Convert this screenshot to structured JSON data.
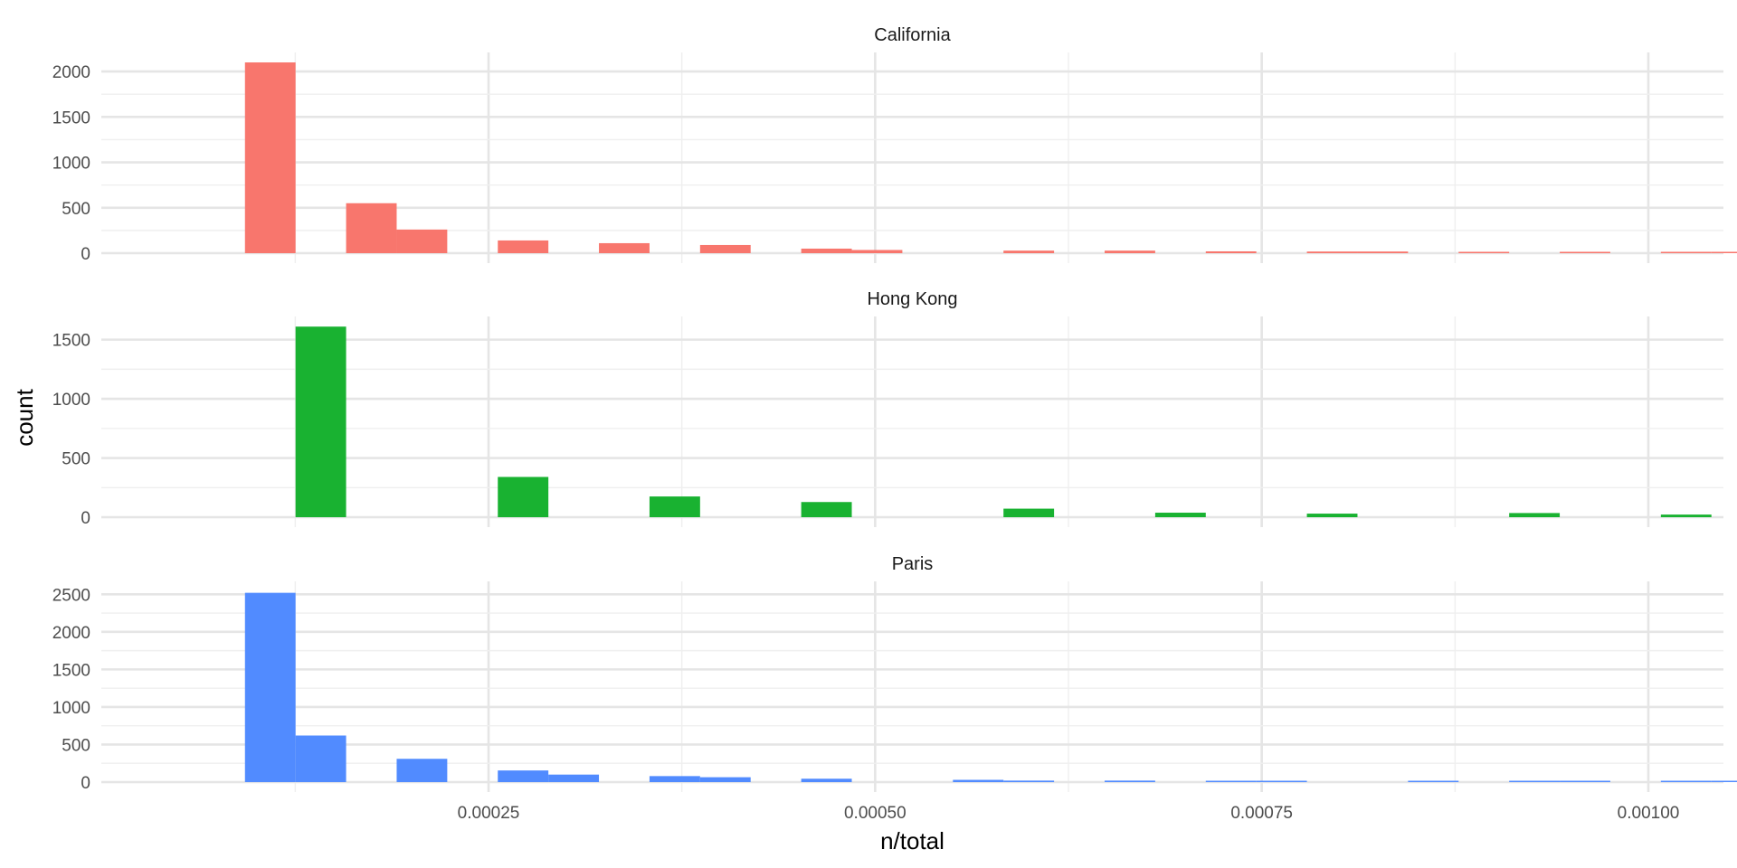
{
  "chart_data": {
    "type": "bar",
    "subtype": "faceted-histogram",
    "xlabel": "n/total",
    "ylabel": "count",
    "xlim": [
      0.0,
      0.00105
    ],
    "x_major_ticks": [
      0.00025,
      0.0005,
      0.00075,
      0.001
    ],
    "x_tick_labels": [
      "0.00025",
      "0.00050",
      "0.00075",
      "0.00100"
    ],
    "x_minor_ticks": [
      0.000125,
      0.000375,
      0.000625,
      0.000875
    ],
    "bin_width": 3.27e-05,
    "bin_origin": 9.25e-05,
    "grid": true,
    "legend": "none",
    "facets": [
      {
        "name": "California",
        "color": "#F8766D",
        "ylim": [
          0,
          2150
        ],
        "y_major_ticks": [
          0,
          500,
          1000,
          1500,
          2000
        ],
        "y_tick_labels": [
          "0",
          "500",
          "1000",
          "1500",
          "2000"
        ],
        "y_minor_ticks": [
          250,
          750,
          1250,
          1750
        ],
        "bins": [
          {
            "bin": 0,
            "count": 2100
          },
          {
            "bin": 2,
            "count": 550
          },
          {
            "bin": 3,
            "count": 260
          },
          {
            "bin": 5,
            "count": 140
          },
          {
            "bin": 7,
            "count": 110
          },
          {
            "bin": 9,
            "count": 90
          },
          {
            "bin": 11,
            "count": 50
          },
          {
            "bin": 12,
            "count": 35
          },
          {
            "bin": 15,
            "count": 28
          },
          {
            "bin": 17,
            "count": 28
          },
          {
            "bin": 19,
            "count": 20
          },
          {
            "bin": 21,
            "count": 18
          },
          {
            "bin": 22,
            "count": 18
          },
          {
            "bin": 24,
            "count": 12
          },
          {
            "bin": 26,
            "count": 12
          },
          {
            "bin": 28,
            "count": 10
          },
          {
            "bin": 29,
            "count": 10
          }
        ]
      },
      {
        "name": "Hong Kong",
        "color": "#19B231",
        "ylim": [
          0,
          1650
        ],
        "y_major_ticks": [
          0,
          500,
          1000,
          1500
        ],
        "y_tick_labels": [
          "0",
          "500",
          "1000",
          "1500"
        ],
        "y_minor_ticks": [
          250,
          750,
          1250
        ],
        "bins": [
          {
            "bin": 1,
            "count": 1610
          },
          {
            "bin": 5,
            "count": 340
          },
          {
            "bin": 8,
            "count": 175
          },
          {
            "bin": 11,
            "count": 128
          },
          {
            "bin": 15,
            "count": 72
          },
          {
            "bin": 18,
            "count": 38
          },
          {
            "bin": 21,
            "count": 30
          },
          {
            "bin": 25,
            "count": 35
          },
          {
            "bin": 28,
            "count": 22
          }
        ]
      },
      {
        "name": "Paris",
        "color": "#518BFF",
        "ylim": [
          0,
          2600
        ],
        "y_major_ticks": [
          0,
          500,
          1000,
          1500,
          2000,
          2500
        ],
        "y_tick_labels": [
          "0",
          "500",
          "1000",
          "1500",
          "2000",
          "2500"
        ],
        "y_minor_ticks": [
          250,
          750,
          1250,
          1750,
          2250
        ],
        "bins": [
          {
            "bin": 0,
            "count": 2520
          },
          {
            "bin": 1,
            "count": 620
          },
          {
            "bin": 3,
            "count": 310
          },
          {
            "bin": 5,
            "count": 155
          },
          {
            "bin": 6,
            "count": 100
          },
          {
            "bin": 8,
            "count": 80
          },
          {
            "bin": 9,
            "count": 65
          },
          {
            "bin": 11,
            "count": 45
          },
          {
            "bin": 14,
            "count": 30
          },
          {
            "bin": 15,
            "count": 20
          },
          {
            "bin": 17,
            "count": 20
          },
          {
            "bin": 19,
            "count": 12
          },
          {
            "bin": 20,
            "count": 12
          },
          {
            "bin": 23,
            "count": 12
          },
          {
            "bin": 25,
            "count": 10
          },
          {
            "bin": 26,
            "count": 10
          },
          {
            "bin": 28,
            "count": 10
          },
          {
            "bin": 29,
            "count": 10
          }
        ]
      }
    ]
  }
}
